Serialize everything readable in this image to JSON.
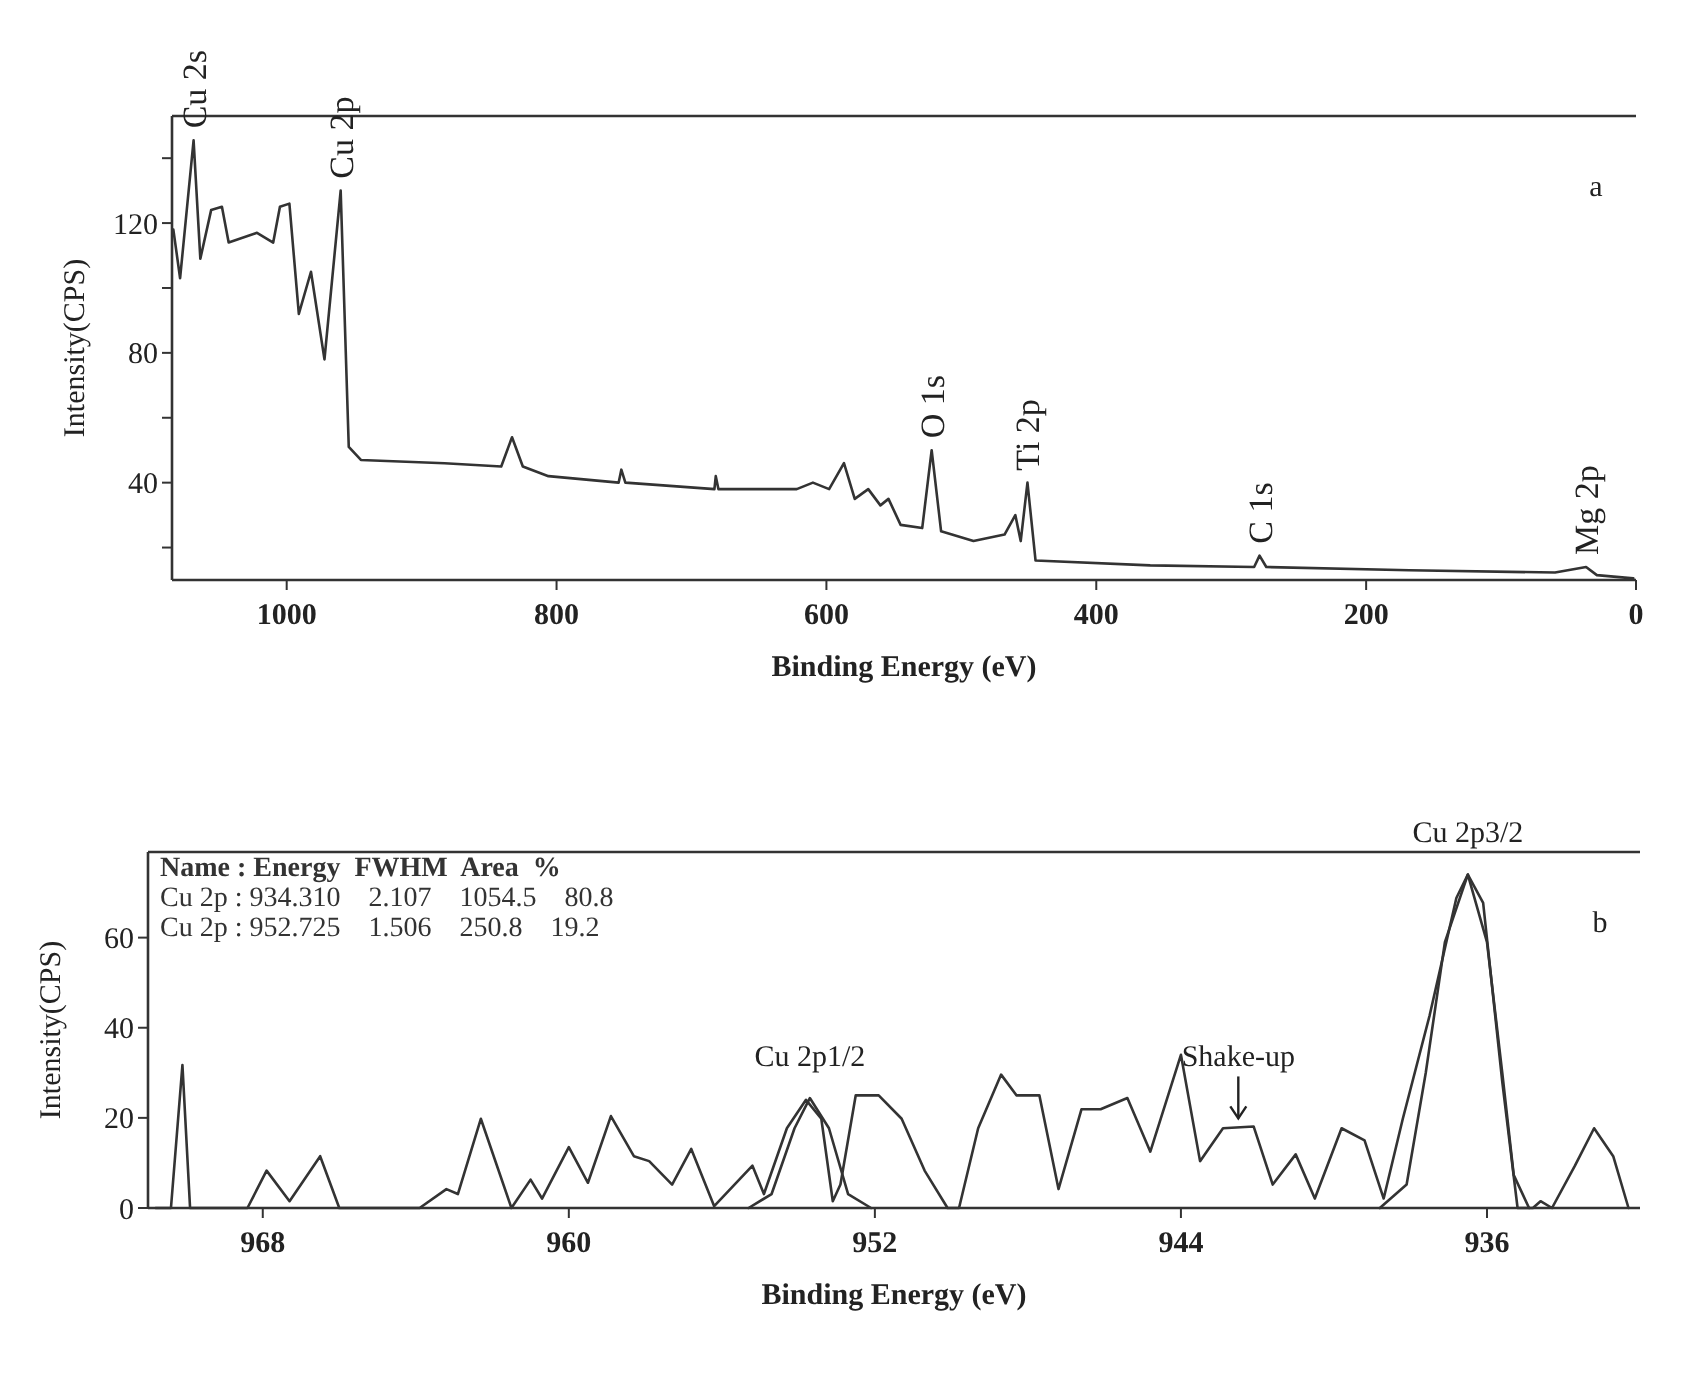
{
  "chart_data": [
    {
      "type": "line",
      "title": "a",
      "xlabel": "Binding Energy (eV)",
      "ylabel": "Intensity(CPS)",
      "xlim": [
        1085,
        0
      ],
      "ylim": [
        10,
        153
      ],
      "xticks": [
        1000,
        800,
        600,
        400,
        200,
        0
      ],
      "yticks": [
        {
          "value": 20,
          "label": null
        },
        40,
        {
          "value": 60,
          "label": null
        },
        80,
        {
          "value": 100,
          "label": null
        },
        120,
        {
          "value": 140,
          "label": null
        }
      ],
      "series": [
        {
          "color": "#333333",
          "x": [
            1084,
            1079,
            1069,
            1064,
            1056,
            1048,
            1043,
            1022,
            1010,
            1005,
            998,
            991,
            982,
            972,
            960,
            954,
            945,
            883,
            841,
            833,
            825,
            806,
            754,
            752,
            749,
            683,
            682,
            680,
            622,
            610,
            598,
            587,
            579,
            569,
            560,
            554,
            545,
            529,
            522,
            515,
            491,
            468,
            460,
            456,
            451,
            445,
            360,
            283,
            279,
            274,
            168,
            60,
            37,
            29,
            2
          ],
          "values": [
            118,
            103,
            145.5,
            109,
            124,
            125,
            114,
            117,
            114,
            125,
            126,
            92,
            105,
            78,
            130,
            51,
            47,
            46,
            45,
            54,
            45,
            42,
            40,
            44,
            40,
            38,
            42,
            38,
            38,
            40,
            38,
            46,
            35,
            38,
            33,
            35,
            27,
            26,
            50,
            25,
            22,
            24,
            30,
            22,
            40,
            16,
            14.5,
            14,
            17.5,
            14,
            13,
            12.3,
            14,
            11.5,
            10.5
          ]
        }
      ],
      "annotations": [
        {
          "text": "Cu 2s",
          "x": 1069,
          "y": 145.5
        },
        {
          "text": "Cu 2p",
          "x": 960,
          "y": 130
        },
        {
          "text": "O 1s",
          "x": 522,
          "y": 50
        },
        {
          "text": "Ti 2p",
          "x": 451,
          "y": 40
        },
        {
          "text": "C 1s",
          "x": 279,
          "y": 17.5
        },
        {
          "text": "Mg 2p",
          "x": 37,
          "y": 14
        }
      ]
    },
    {
      "type": "line",
      "title": "b",
      "xlabel": "Binding Energy (eV)",
      "ylabel": "Intensity(CPS)",
      "xlim": [
        971,
        932
      ],
      "ylim": [
        0,
        79
      ],
      "xticks": [
        968,
        960,
        952,
        944,
        936
      ],
      "yticks": [
        0,
        20,
        40,
        60
      ],
      "series": [
        {
          "color": "#333333",
          "x": [
            970.8,
            970.4,
            970.1,
            969.9,
            968.4,
            967.9,
            967.3,
            966.5,
            966.0,
            963.9,
            963.2,
            962.9,
            962.3,
            961.5,
            961.0,
            960.7,
            960.0,
            959.5,
            958.9,
            958.3,
            957.9,
            957.3,
            956.8,
            956.2,
            955.2,
            954.9,
            954.3,
            953.8,
            953.4,
            953.1,
            952.9,
            952.5,
            951.9,
            951.3,
            950.7,
            950.1,
            949.8,
            949.3,
            948.7,
            948.3,
            947.7,
            947.2,
            946.6,
            946.1,
            945.4,
            944.8,
            944.0,
            943.5,
            942.9,
            942.1,
            941.6,
            941.0,
            940.5,
            939.8,
            939.2,
            938.7,
            938.2,
            937.5,
            936.8,
            936.5,
            936.1,
            935.6,
            935.2,
            934.8,
            934.6,
            934.3,
            933.7,
            933.2,
            932.7,
            932.3
          ],
          "values": [
            0,
            0,
            31.7,
            0,
            0,
            8.3,
            1.5,
            11.5,
            0,
            0,
            4.2,
            3.1,
            19.8,
            0,
            6.3,
            2.1,
            13.5,
            5.6,
            20.4,
            11.5,
            10.4,
            5.2,
            13.1,
            0.4,
            9.4,
            3.1,
            17.7,
            24,
            19.8,
            1.5,
            5.2,
            25,
            25,
            19.8,
            8.3,
            0,
            0,
            17.7,
            29.6,
            25,
            25,
            4.2,
            21.9,
            21.9,
            24.4,
            12.5,
            34,
            10.4,
            17.7,
            18.1,
            5.2,
            11.9,
            2.1,
            17.7,
            15,
            2.1,
            19.8,
            42.7,
            68.8,
            74,
            67.7,
            28,
            0,
            0,
            1.5,
            0,
            9.4,
            17.7,
            11.5,
            0
          ]
        },
        {
          "color": "#333333",
          "x": [
            938.8,
            938.1,
            937.6,
            937.1,
            936.5,
            936.0,
            935.6,
            935.3,
            934.9
          ],
          "values": [
            0,
            5.2,
            30,
            59,
            74,
            59,
            30,
            7.3,
            0
          ]
        },
        {
          "color": "#333333",
          "x": [
            955.3,
            954.7,
            954.1,
            953.7,
            953.2,
            952.7,
            952.1
          ],
          "values": [
            0,
            3.1,
            17.7,
            24.4,
            17.7,
            3.1,
            0
          ]
        }
      ],
      "annotations": [
        "Name : Energy  FWHM  Area  %",
        "Cu 2p : 934.310    2.107    1054.5    80.8",
        "Cu 2p : 952.725    1.506    250.8    19.2",
        {
          "text": "Cu 2p1/2",
          "x": 953.7,
          "y": 24.4
        },
        {
          "text": "Cu 2p3/2",
          "x": 936.5,
          "y": 74
        },
        {
          "text": "Shake-up",
          "x": 942.5,
          "y": 18.1
        }
      ]
    }
  ]
}
